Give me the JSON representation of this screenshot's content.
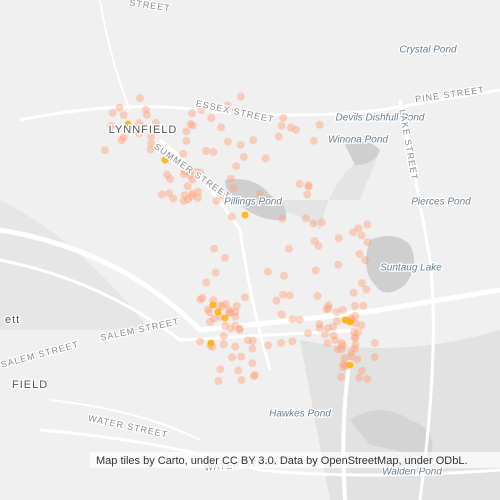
{
  "map": {
    "labels": [
      {
        "text": "Crystal Pond",
        "kind": "water"
      },
      {
        "text": "PINE STREET",
        "kind": "street"
      },
      {
        "text": "ESSEX STREET",
        "kind": "street"
      },
      {
        "text": "Devils Dishfull Pond",
        "kind": "water"
      },
      {
        "text": "LYNNFIELD",
        "kind": "town"
      },
      {
        "text": "SUMMER STREET",
        "kind": "street"
      },
      {
        "text": "Winona Pond",
        "kind": "water"
      },
      {
        "text": "LAKE STREET",
        "kind": "street"
      },
      {
        "text": "Pillings Pond",
        "kind": "water"
      },
      {
        "text": "Pierces Pond",
        "kind": "water"
      },
      {
        "text": "Suntaug Lake",
        "kind": "water"
      },
      {
        "text": "SALEM STREET",
        "kind": "street"
      },
      {
        "text": "SALEM STREET",
        "kind": "street"
      },
      {
        "text": "ett",
        "kind": "town"
      },
      {
        "text": "FIELD",
        "kind": "town"
      },
      {
        "text": "Hawkes Pond",
        "kind": "water"
      },
      {
        "text": "WATER STREET",
        "kind": "street"
      },
      {
        "text": "WATER STREET",
        "kind": "street"
      },
      {
        "text": "STREET",
        "kind": "street"
      },
      {
        "text": "Walden Pond",
        "kind": "water"
      }
    ],
    "attribution": "Map tiles by Carto, under CC BY 3.0. Data by OpenStreetMap, under ODbL."
  }
}
